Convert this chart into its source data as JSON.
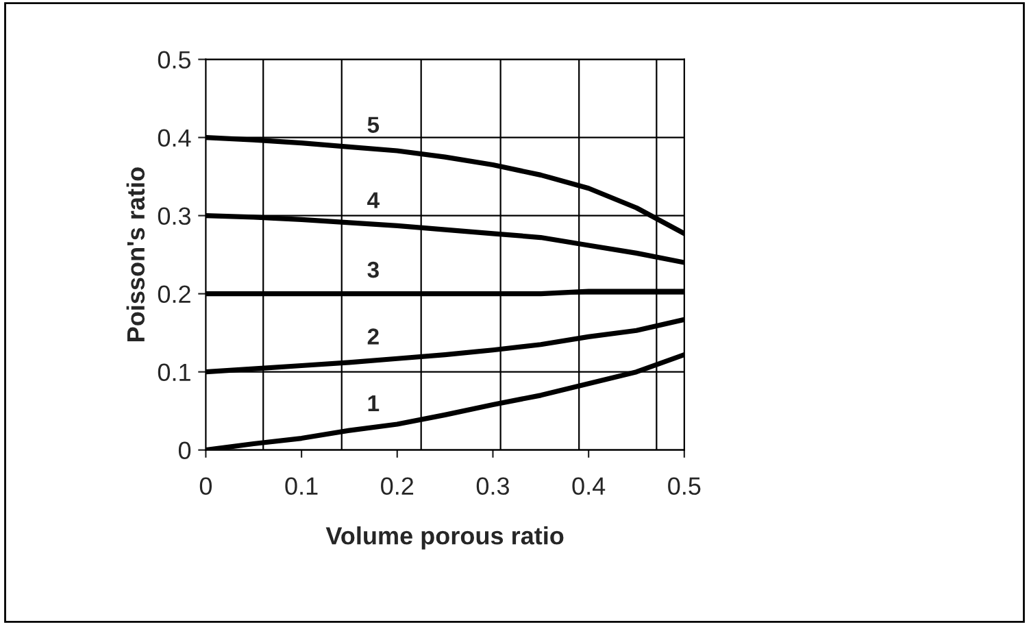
{
  "chart_data": {
    "type": "line",
    "xlabel": "Volume porous ratio",
    "ylabel": "Poisson's ratio",
    "x": [
      0,
      0.05,
      0.1,
      0.15,
      0.2,
      0.25,
      0.3,
      0.35,
      0.4,
      0.45,
      0.5
    ],
    "series": [
      {
        "name": "1",
        "color": "#000000",
        "values": [
          0,
          0.008,
          0.015,
          0.025,
          0.033,
          0.045,
          0.058,
          0.07,
          0.085,
          0.1,
          0.122
        ]
      },
      {
        "name": "2",
        "color": "#000000",
        "values": [
          0.1,
          0.104,
          0.108,
          0.112,
          0.117,
          0.122,
          0.128,
          0.135,
          0.145,
          0.153,
          0.167
        ]
      },
      {
        "name": "3",
        "color": "#000000",
        "values": [
          0.2,
          0.2,
          0.2,
          0.2,
          0.2,
          0.2,
          0.2,
          0.2,
          0.203,
          0.203,
          0.203
        ]
      },
      {
        "name": "4",
        "color": "#000000",
        "values": [
          0.3,
          0.298,
          0.295,
          0.291,
          0.287,
          0.282,
          0.277,
          0.272,
          0.262,
          0.252,
          0.24
        ]
      },
      {
        "name": "5",
        "color": "#000000",
        "values": [
          0.4,
          0.397,
          0.393,
          0.388,
          0.383,
          0.375,
          0.365,
          0.352,
          0.335,
          0.31,
          0.277
        ]
      }
    ],
    "xlim": [
      0,
      0.5
    ],
    "ylim": [
      0,
      0.5
    ],
    "xticks": [
      0,
      0.1,
      0.2,
      0.3,
      0.4,
      0.5
    ],
    "yticks": [
      0,
      0.1,
      0.2,
      0.3,
      0.4,
      0.5
    ],
    "grid": "y",
    "legend": false,
    "marker": "none",
    "line_style": "solid",
    "ref_lines": [
      {
        "axis": "x",
        "value": 0.06,
        "color": "#000000"
      },
      {
        "axis": "x",
        "value": 0.142,
        "color": "#000000"
      },
      {
        "axis": "x",
        "value": 0.225,
        "color": "#000000"
      },
      {
        "axis": "x",
        "value": 0.308,
        "color": "#000000"
      },
      {
        "axis": "x",
        "value": 0.39,
        "color": "#000000"
      },
      {
        "axis": "x",
        "value": 0.471,
        "color": "#000000"
      }
    ]
  }
}
